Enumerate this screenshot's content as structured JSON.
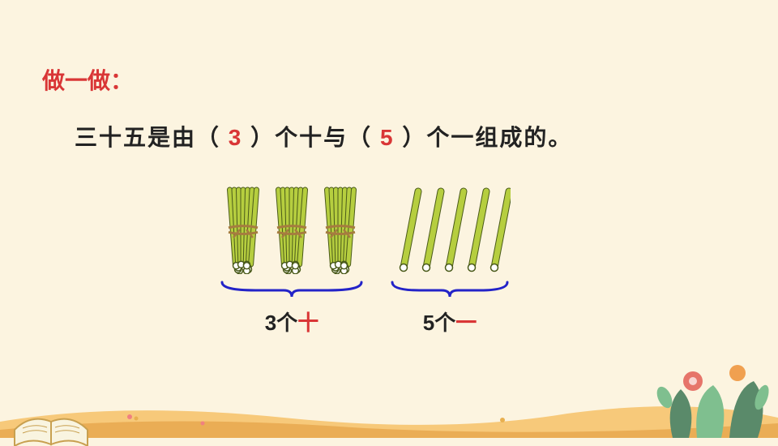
{
  "title": "做一做：",
  "sentence": {
    "parts": [
      {
        "text": "三十五是由（",
        "color": "#222"
      },
      {
        "text": "3",
        "color": "#d93636"
      },
      {
        "text": "）个十与（",
        "color": "#222"
      },
      {
        "text": "5",
        "color": "#d93636"
      },
      {
        "text": "）个一组成的。",
        "color": "#222"
      }
    ]
  },
  "bundles": {
    "count": 3,
    "stick_color": "#b6ce3f",
    "stick_stroke": "#4a5a1a",
    "tie_color": "#a67c3f",
    "brace_color": "#2323c8",
    "brace_width": 180,
    "label_prefix": "3个",
    "label_unit": "十",
    "label_unit_color": "#d93636"
  },
  "sticks": {
    "count": 5,
    "stick_color": "#b6ce3f",
    "stick_stroke": "#4a5a1a",
    "brace_color": "#2323c8",
    "brace_width": 150,
    "label_prefix": "5个",
    "label_unit": "一",
    "label_unit_color": "#d93636"
  },
  "decor": {
    "ground_colors": [
      "#f7c97a",
      "#e8a84f"
    ],
    "book_page_color": "#f9f4e0",
    "book_edge_color": "#c8a050",
    "flower_colors": [
      "#e6746a",
      "#f0a050",
      "#7fbf8f",
      "#5a8a6a"
    ],
    "tiny_flower_colors": [
      "#f08080",
      "#e8b050"
    ]
  }
}
